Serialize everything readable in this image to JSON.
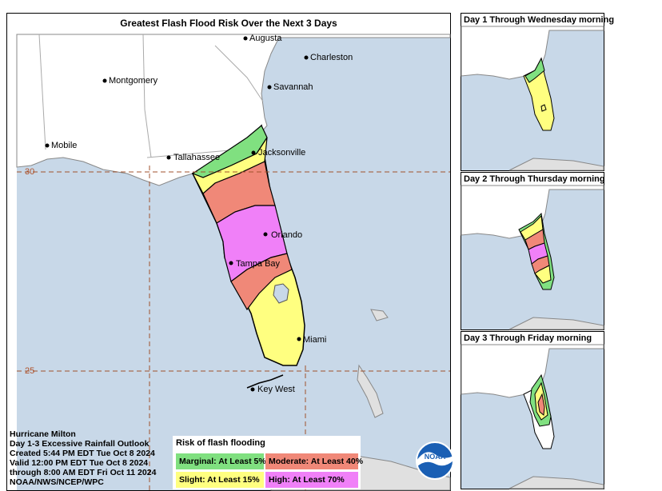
{
  "map": {
    "title": "Greatest Flash Flood Risk Over the Next 3 Days",
    "cities": [
      "Augusta",
      "Charleston",
      "Montgomery",
      "Savannah",
      "Mobile",
      "Tallahassee",
      "Jacksonville",
      "Orlando",
      "Tampa Bay",
      "Miami",
      "Key West"
    ],
    "lat_labels": [
      "30",
      "25"
    ]
  },
  "panels": [
    {
      "title": "Day 1 Through Wednesday morning"
    },
    {
      "title": "Day 2 Through Thursday morning"
    },
    {
      "title": "Day 3 Through Friday morning"
    }
  ],
  "info": {
    "line1": "Hurricane Milton",
    "line2": "Day 1-3 Excessive Rainfall Outlook",
    "line3": "Created 5:44 PM EDT Tue Oct 8 2024",
    "line4": "Valid 12:00 PM EDT Tue Oct 8 2024",
    "line5": "through 8:00 AM EDT Fri Oct 11 2024",
    "line6": "NOAA/NWS/NCEP/WPC"
  },
  "legend": {
    "title": "Risk of flash flooding",
    "marginal": "Marginal: At Least 5%",
    "moderate": "Moderate: At Least 40%",
    "slight": "Slight: At Least 15%",
    "high": "High: At Least 70%"
  },
  "colors": {
    "ocean": "#c8d8e8",
    "land": "#ffffff",
    "marginal": "#80e080",
    "slight": "#ffff80",
    "moderate": "#f08878",
    "high": "#f080f8",
    "gridline": "#a0522d"
  },
  "logo": {
    "text": "NOAA"
  }
}
